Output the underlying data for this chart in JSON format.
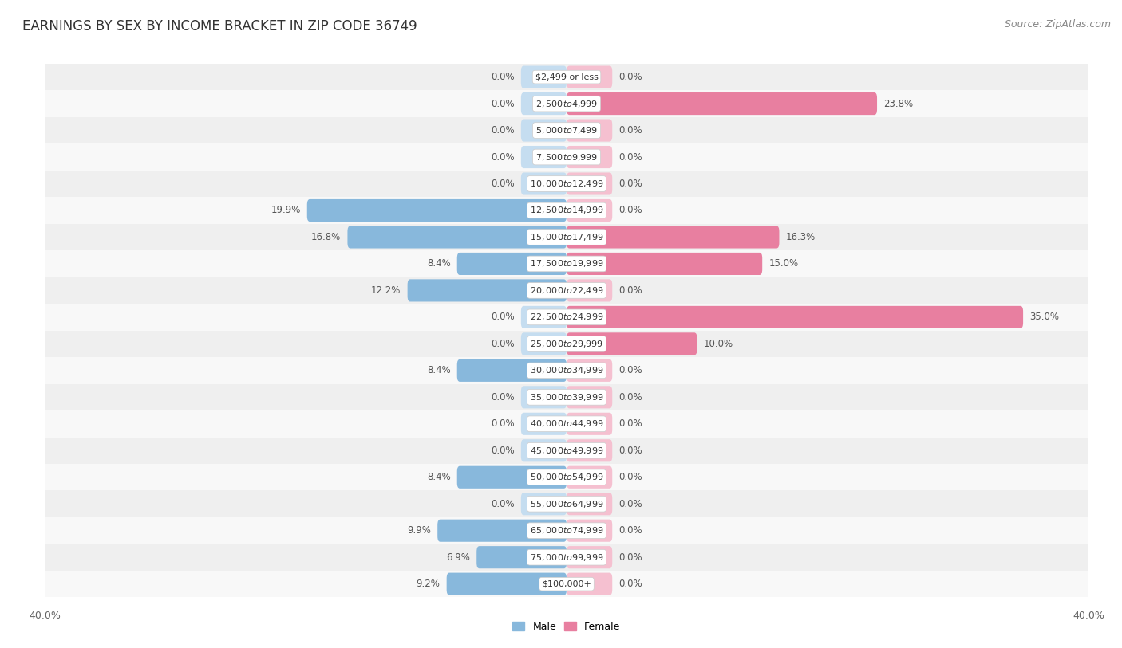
{
  "title": "EARNINGS BY SEX BY INCOME BRACKET IN ZIP CODE 36749",
  "source": "Source: ZipAtlas.com",
  "categories": [
    "$2,499 or less",
    "$2,500 to $4,999",
    "$5,000 to $7,499",
    "$7,500 to $9,999",
    "$10,000 to $12,499",
    "$12,500 to $14,999",
    "$15,000 to $17,499",
    "$17,500 to $19,999",
    "$20,000 to $22,499",
    "$22,500 to $24,999",
    "$25,000 to $29,999",
    "$30,000 to $34,999",
    "$35,000 to $39,999",
    "$40,000 to $44,999",
    "$45,000 to $49,999",
    "$50,000 to $54,999",
    "$55,000 to $64,999",
    "$65,000 to $74,999",
    "$75,000 to $99,999",
    "$100,000+"
  ],
  "male_values": [
    0.0,
    0.0,
    0.0,
    0.0,
    0.0,
    19.9,
    16.8,
    8.4,
    12.2,
    0.0,
    0.0,
    8.4,
    0.0,
    0.0,
    0.0,
    8.4,
    0.0,
    9.9,
    6.9,
    9.2
  ],
  "female_values": [
    0.0,
    23.8,
    0.0,
    0.0,
    0.0,
    0.0,
    16.3,
    15.0,
    0.0,
    35.0,
    10.0,
    0.0,
    0.0,
    0.0,
    0.0,
    0.0,
    0.0,
    0.0,
    0.0,
    0.0
  ],
  "male_color": "#88b8dc",
  "female_color": "#e87fa0",
  "male_zero_color": "#c5ddf0",
  "female_zero_color": "#f5c0d0",
  "row_color_even": "#efefef",
  "row_color_odd": "#f8f8f8",
  "xlim": 40.0,
  "zero_stub": 3.5,
  "bar_height": 0.42,
  "title_fontsize": 12,
  "source_fontsize": 9,
  "label_fontsize": 8.5,
  "tick_fontsize": 9
}
